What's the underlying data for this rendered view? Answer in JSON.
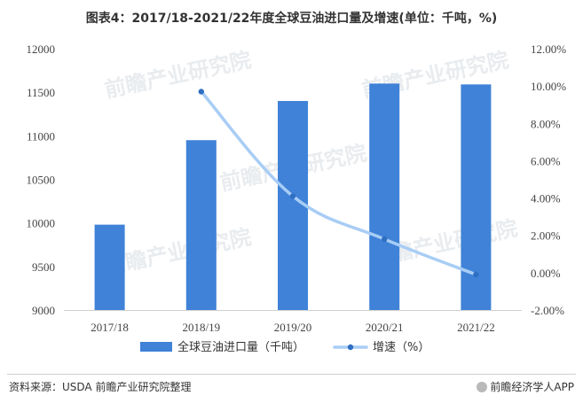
{
  "chart_data": {
    "type": "bar+line",
    "title": "图表4：2017/18-2021/22年度全球豆油进口量及增速(单位：千吨，%)",
    "categories": [
      "2017/18",
      "2018/19",
      "2019/20",
      "2020/21",
      "2021/22"
    ],
    "series": [
      {
        "name": "全球豆油进口量（千吨）",
        "type": "bar",
        "axis": "left",
        "color": "#3f82d8",
        "values": [
          9980,
          10950,
          11400,
          11600,
          11590
        ]
      },
      {
        "name": "增速（%）",
        "type": "line",
        "axis": "right",
        "color": "#a8cdf5",
        "marker_color": "#2f6fc2",
        "values": [
          null,
          9.7,
          4.1,
          1.8,
          -0.1
        ]
      }
    ],
    "y_left": {
      "min": 9000,
      "max": 12000,
      "ticks": [
        "9000",
        "9500",
        "10000",
        "10500",
        "11000",
        "11500",
        "12000"
      ]
    },
    "y_right": {
      "min": -2,
      "max": 12,
      "ticks": [
        "-2.00%",
        "0.00%",
        "2.00%",
        "4.00%",
        "6.00%",
        "8.00%",
        "10.00%",
        "12.00%"
      ]
    },
    "grid": false,
    "legend_position": "bottom"
  },
  "footer": {
    "source": "资料来源：USDA 前瞻产业研究院整理",
    "brand": "前瞻经济学人APP"
  },
  "watermark": "前瞻产业研究院"
}
